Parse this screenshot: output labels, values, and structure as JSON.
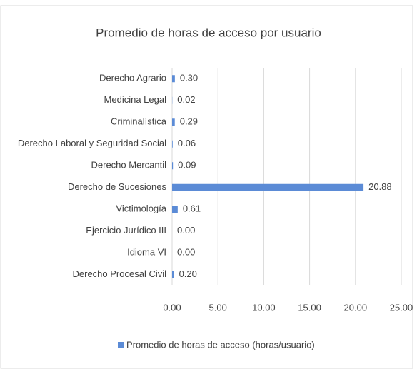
{
  "chart_data": {
    "type": "barh",
    "title": "Promedio de horas de acceso por usuario",
    "categories": [
      "Derecho Agrario",
      "Medicina Legal",
      "Criminalística",
      "Derecho Laboral y Seguridad Social",
      "Derecho Mercantil",
      "Derecho de Sucesiones",
      "Victimología",
      "Ejercicio Jurídico III",
      "Idioma VI",
      "Derecho Procesal Civil"
    ],
    "series": [
      {
        "name": "Promedio de horas de acceso (horas/usuario)",
        "color": "#5b8bd6",
        "values": [
          0.3,
          0.02,
          0.29,
          0.06,
          0.09,
          20.88,
          0.61,
          0,
          0,
          0.2
        ],
        "value_labels": [
          "0.30",
          "0.02",
          "0.29",
          "0.06",
          "0.09",
          "20.88",
          "0.61",
          "0.00",
          "0.00",
          "0.20"
        ]
      }
    ],
    "xlim": [
      0,
      25
    ],
    "xticks": [
      {
        "value": 0,
        "label": "0.00"
      },
      {
        "value": 5,
        "label": "5.00"
      },
      {
        "value": 10,
        "label": "10.00"
      },
      {
        "value": 15,
        "label": "15.00"
      },
      {
        "value": 20,
        "label": "20.00"
      },
      {
        "value": 25,
        "label": "25.00"
      }
    ],
    "grid": true,
    "legend": "bottom"
  }
}
